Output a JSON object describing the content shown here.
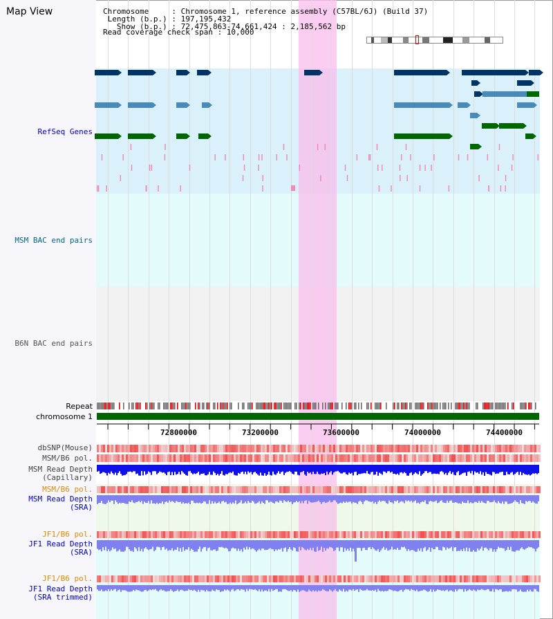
{
  "header": {
    "title": "Map View",
    "chromosome_line": "Chromosome     : Chromosome 1, reference assembly (C57BL/6J) (Build 37)",
    "length_line": " Length (b.p.) : 197,195,432",
    "show_line": "   Show (b.p.) : 72,475,863-74,661,424 : 2,185,562 bp",
    "coverage_line": "Read coverage check span : 10,000"
  },
  "tracks": {
    "refseq": "RefSeq Genes",
    "msm_bac": "MSM BAC end pairs",
    "b6n_bac": "B6N BAC end pairs",
    "repeat": "Repeat",
    "chromosome": "chromosome 1",
    "dbsnp": "dbSNP(Mouse)",
    "msm_b6_pol_1": "MSM/B6 pol.",
    "msm_read_depth_cap": "MSM Read Depth\n(Capillary)",
    "msm_b6_pol_2": "MSM/B6 pol.",
    "msm_read_depth_sra": "MSM Read Depth\n(SRA)",
    "jf1_b6_pol_1": "JF1/B6 pol.",
    "jf1_read_depth_sra": "JF1 Read Depth\n(SRA)",
    "jf1_b6_pol_2": "JF1/B6 pol.",
    "jf1_read_depth_trimmed": "JF1 Read Depth\n(SRA trimmed)"
  },
  "axis_ticks": [
    "72800000",
    "73200000",
    "73600000",
    "74000000",
    "74400000"
  ],
  "colors": {
    "refseq_label": "#0000cc",
    "msm_bac_label": "#006688",
    "b6n_bac_label": "#555555",
    "pol_label": "#e08a00",
    "read_depth_label": "#0000cc",
    "highlight": "#f9c8ec",
    "chromosome_bar": "#006600",
    "depth_dark": "#1010e8",
    "depth_light": "#8080f0"
  }
}
